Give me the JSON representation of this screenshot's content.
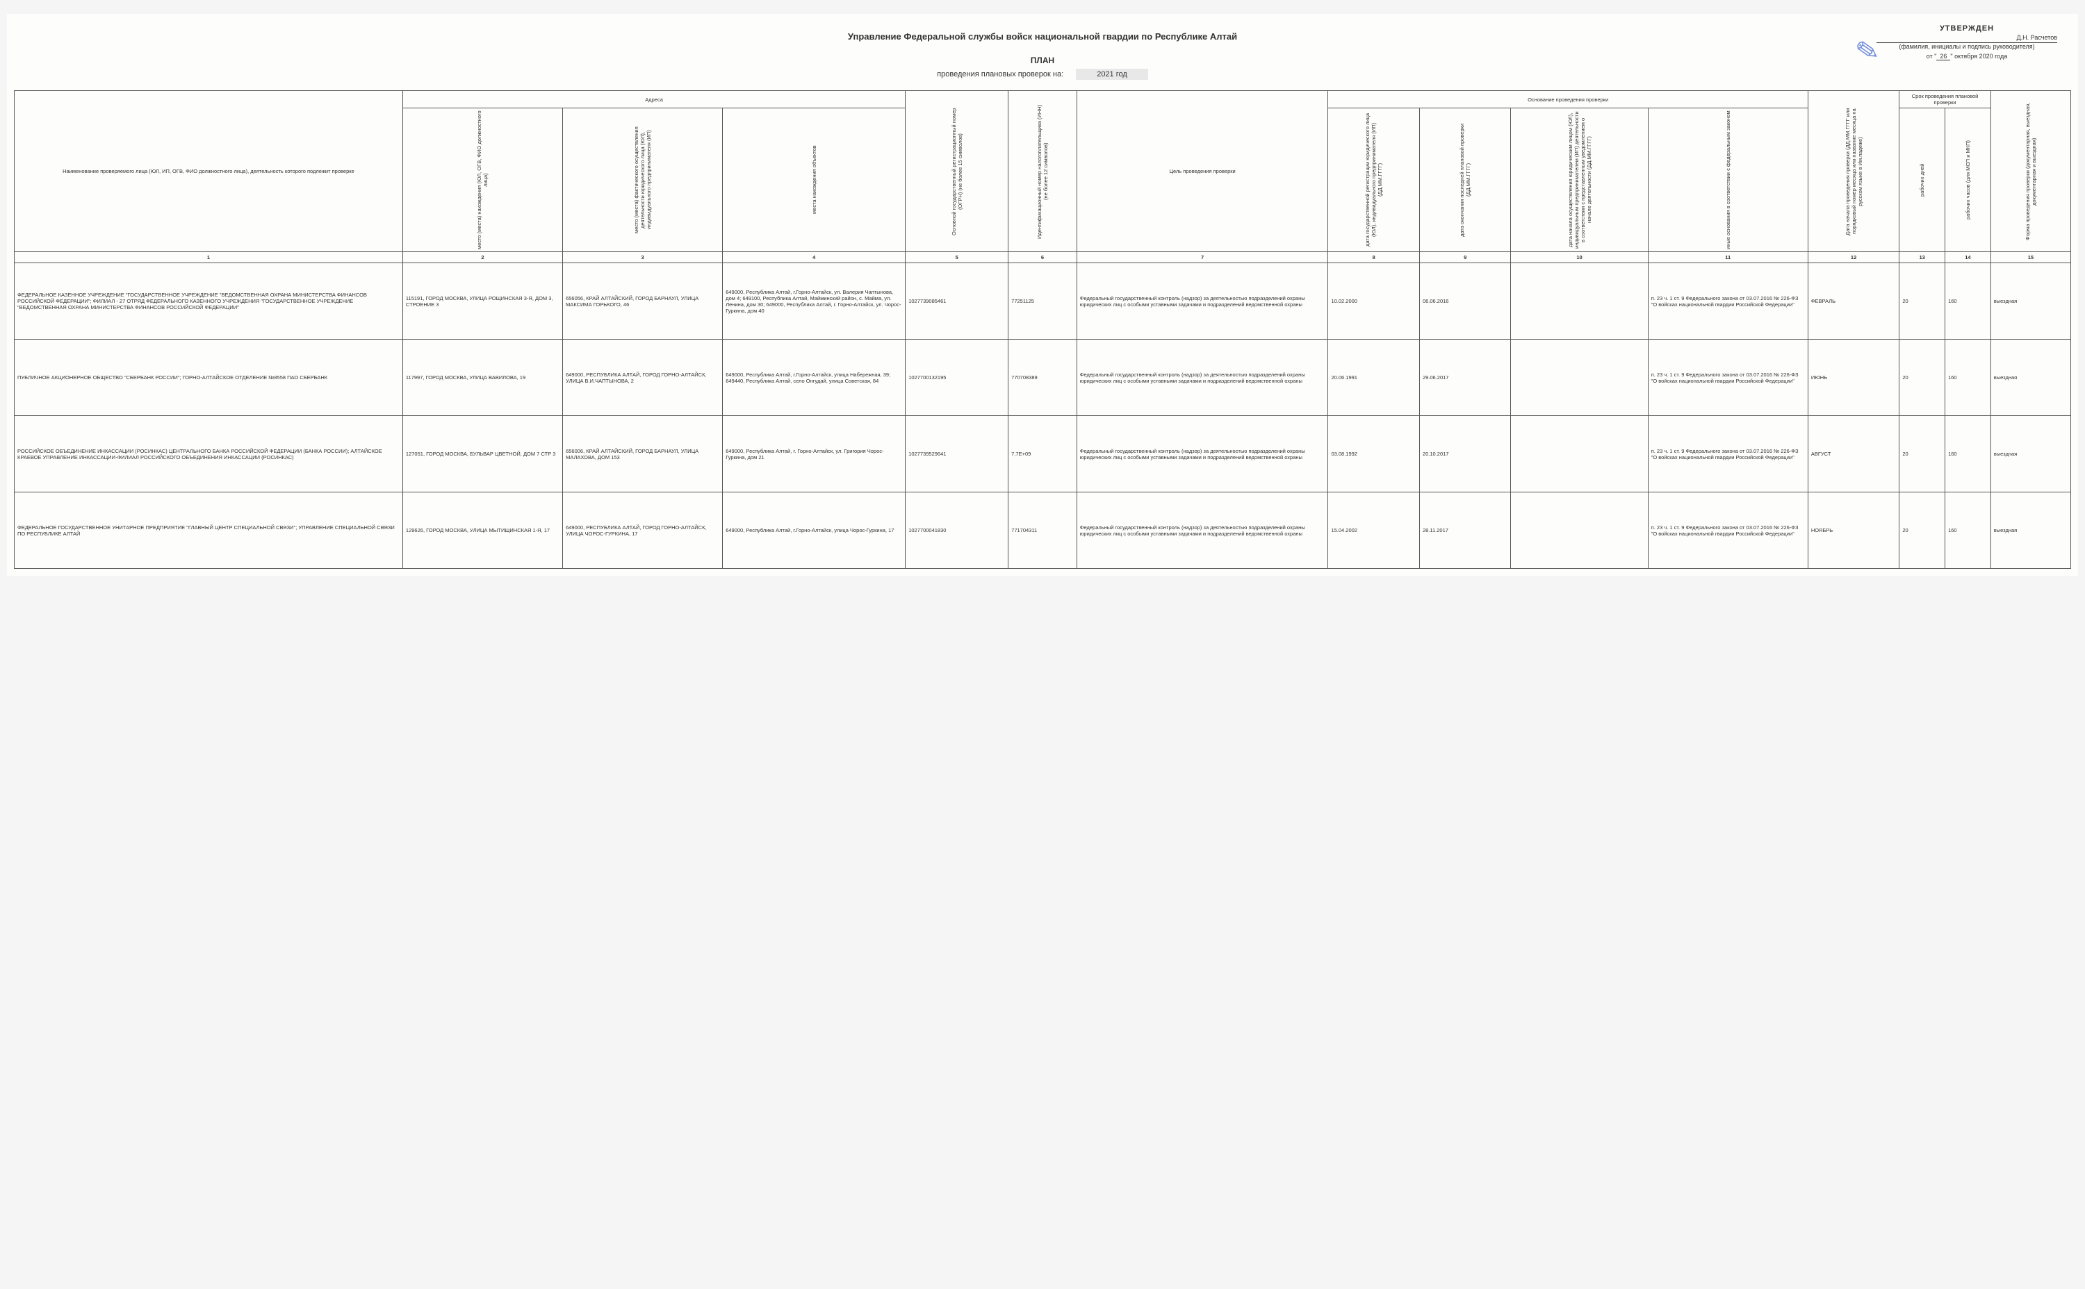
{
  "header": {
    "organization": "Управление Федеральной службы войск национальной гвардии по Республике Алтай",
    "approved_label": "УТВЕРЖДЕН",
    "signer": "Д.Н. Расчетов",
    "signer_caption": "(фамилия, инициалы и подпись руководителя)",
    "date_prefix": "от \"",
    "date_day": "26",
    "date_suffix": "\" октября 2020 года",
    "plan_label": "ПЛАН",
    "sub_label": "проведения плановых проверок на:",
    "year": "2021 год"
  },
  "columns": {
    "group_addresses": "Адреса",
    "group_basis": "Основание проведения проверки",
    "group_duration": "Срок проведения плановой проверки",
    "c1": "Наименование проверяемого лица (ЮЛ, ИП, ОГВ, ФИО должностного лица), деятельность которого подлежит проверке",
    "c2": "место (места) нахождения (ЮЛ, ОГВ, ФИО должностного лица)",
    "c3": "место (места) фактического осуществления деятельности юридического лица (ЮЛ), индивидуального предпринимателя (ИП)",
    "c4": "места нахождения объектов",
    "c5": "Основной государственный регистрационный номер (ОГРН) (не более 15 символов)",
    "c6": "Идентификационный номер налогоплательщика (ИНН) (не более 12 символов)",
    "c7": "Цель проведения проверки",
    "c8": "дата государственной регистрации юридического лица (ЮЛ), индивидуального предпринимателя (ИП) (ДД.ММ.ГГГГ)",
    "c9": "дата окончания последней плановой проверки (ДД.ММ.ГГГГ)",
    "c10": "дата начала осуществления юридическим лицом (ЮЛ), индивидуальным предпринимателем (ИП) деятельности в соответствии с представленным уведомлением о начале деятельности (ДД.ММ.ГГГГ)",
    "c11": "иные основания в соответствии с федеральным законом",
    "c12": "Дата начала проведения проверки (ДД.ММ.ГГГГ или порядковый номер месяца или название месяца на русском языке в Им.падеже)",
    "c13": "рабочих дней",
    "c14": "рабочих часов (для МСП и МКП)",
    "c15": "Форма проведения проверки (документарная, выездная, документарная и выездная)"
  },
  "col_numbers": [
    "1",
    "2",
    "3",
    "4",
    "5",
    "6",
    "7",
    "8",
    "9",
    "10",
    "11",
    "12",
    "13",
    "14",
    "15"
  ],
  "rows": [
    {
      "c1": "ФЕДЕРАЛЬНОЕ КАЗЕННОЕ УЧРЕЖДЕНИЕ \"ГОСУДАРСТВЕННОЕ УЧРЕЖДЕНИЕ \"ВЕДОМСТВЕННАЯ ОХРАНА МИНИСТЕРСТВА ФИНАНСОВ РОССИЙСКОЙ ФЕДЕРАЦИИ\"; ФИЛИАЛ - 27 ОТРЯД ФЕДЕРАЛЬНОГО КАЗЕННОГО УЧРЕЖДЕНИЯ \"ГОСУДАРСТВЕННОЕ УЧРЕЖДЕНИЕ \"ВЕДОМСТВЕННАЯ ОХРАНА МИНИСТЕРСТВА ФИНАНСОВ РОССИЙСКОЙ ФЕДЕРАЦИИ\"",
      "c2": "115191, ГОРОД МОСКВА, УЛИЦА РОЩИНСКАЯ 3-Я, ДОМ 3, СТРОЕНИЕ 3",
      "c3": "656056, КРАЙ АЛТАЙСКИЙ, ГОРОД БАРНАУЛ, УЛИЦА МАКСИМА ГОРЬКОГО, 46",
      "c4": "649000, Республика Алтай, г.Горно-Алтайск, ул. Валерия Чаптынова, дом 4; 649100, Республика Алтай, Майминский район, с. Майма, ул. Ленина, дом 30; 649000, Республика Алтай, г. Горно-Алтайск, ул. Чорос-Гуркина, дом 40",
      "c5": "1027739085461",
      "c6": "77251125",
      "c7": "Федеральный государственный контроль (надзор) за деятельностью подразделений охраны юридических лиц с особыми уставными задачами и подразделений ведомственной охраны",
      "c8": "10.02.2000",
      "c9": "06.06.2016",
      "c10": "",
      "c11": "п. 23 ч. 1 ст. 9 Федерального закона от 03.07.2016 № 226-ФЗ \"О войсках национальной гвардии Российской Федерации\"",
      "c12": "ФЕВРАЛЬ",
      "c13": "20",
      "c14": "160",
      "c15": "выездная"
    },
    {
      "c1": "ПУБЛИЧНОЕ АКЦИОНЕРНОЕ ОБЩЕСТВО \"СБЕРБАНК РОССИИ\"; ГОРНО-АЛТАЙСКОЕ ОТДЕЛЕНИЕ №8558 ПАО СБЕРБАНК",
      "c2": "117997, ГОРОД МОСКВА, УЛИЦА ВАВИЛОВА, 19",
      "c3": "649000, РЕСПУБЛИКА АЛТАЙ, ГОРОД ГОРНО-АЛТАЙСК, УЛИЦА В.И.ЧАПТЫНОВА, 2",
      "c4": "649000, Республика Алтай, г.Горно-Алтайск, улица Набережная, 39; 649440, Республика Алтай, село Онгудай, улица Советская, 84",
      "c5": "1027700132195",
      "c6": "770708389",
      "c7": "Федеральный государственный контроль (надзор) за деятельностью подразделений охраны юридических лиц с особыми уставными задачами и подразделений ведомственной охраны",
      "c8": "20.06.1991",
      "c9": "29.06.2017",
      "c10": "",
      "c11": "п. 23 ч. 1 ст. 9 Федерального закона от 03.07.2016 № 226-ФЗ \"О войсках национальной гвардии Российской Федерации\"",
      "c12": "ИЮНЬ",
      "c13": "20",
      "c14": "160",
      "c15": "выездная"
    },
    {
      "c1": "РОССИЙСКОЕ ОБЪЕДИНЕНИЕ ИНКАССАЦИИ (РОСИНКАС) ЦЕНТРАЛЬНОГО БАНКА РОССИЙСКОЙ ФЕДЕРАЦИИ (БАНКА РОССИИ); АЛТАЙСКОЕ КРАЕВОЕ УПРАВЛЕНИЕ ИНКАССАЦИИ-ФИЛИАЛ РОССИЙСКОГО ОБЪЕДИНЕНИЯ ИНКАССАЦИИ (РОСИНКАС)",
      "c2": "127051, ГОРОД МОСКВА, БУЛЬВАР ЦВЕТНОЙ, ДОМ 7 СТР 3",
      "c3": "656006, КРАЙ АЛТАЙСКИЙ, ГОРОД БАРНАУЛ, УЛИЦА МАЛАХОВА, ДОМ 153",
      "c4": "649000, Республика Алтай, г. Горно-Алтайск, ул. Григория Чорос-Гуркина, дом 21",
      "c5": "1027739529641",
      "c6": "7,7E+09",
      "c7": "Федеральный государственный контроль (надзор) за деятельностью подразделений охраны юридических лиц с особыми уставными задачами и подразделений ведомственной охраны",
      "c8": "03.08.1992",
      "c9": "20.10.2017",
      "c10": "",
      "c11": "п. 23 ч. 1 ст. 9 Федерального закона от 03.07.2016 № 226-ФЗ \"О войсках национальной гвардии Российской Федерации\"",
      "c12": "АВГУСТ",
      "c13": "20",
      "c14": "160",
      "c15": "выездная"
    },
    {
      "c1": "ФЕДЕРАЛЬНОЕ ГОСУДАРСТВЕННОЕ УНИТАРНОЕ ПРЕДПРИЯТИЕ \"ГЛАВНЫЙ ЦЕНТР СПЕЦИАЛЬНОЙ СВЯЗИ\"; УПРАВЛЕНИЕ СПЕЦИАЛЬНОЙ СВЯЗИ ПО РЕСПУБЛИКЕ АЛТАЙ",
      "c2": "129626, ГОРОД МОСКВА, УЛИЦА МЫТИЩИНСКАЯ 1-Я, 17",
      "c3": "649000, РЕСПУБЛИКА АЛТАЙ, ГОРОД ГОРНО-АЛТАЙСК, УЛИЦА ЧОРОС-ГУРКИНА, 17",
      "c4": "649000, Республика Алтай, г.Горно-Алтайск, улица Чорос-Гуркина, 17",
      "c5": "1027700041830",
      "c6": "771704311",
      "c7": "Федеральный государственный контроль (надзор) за деятельностью подразделений охраны юридических лиц с особыми уставными задачами и подразделений ведомственной охраны",
      "c8": "15.04.2002",
      "c9": "28.11.2017",
      "c10": "",
      "c11": "п. 23 ч. 1 ст. 9 Федерального закона от 03.07.2016 № 226-ФЗ \"О войсках национальной гвардии Российской Федерации\"",
      "c12": "НОЯБРЬ",
      "c13": "20",
      "c14": "160",
      "c15": "выездная"
    }
  ]
}
